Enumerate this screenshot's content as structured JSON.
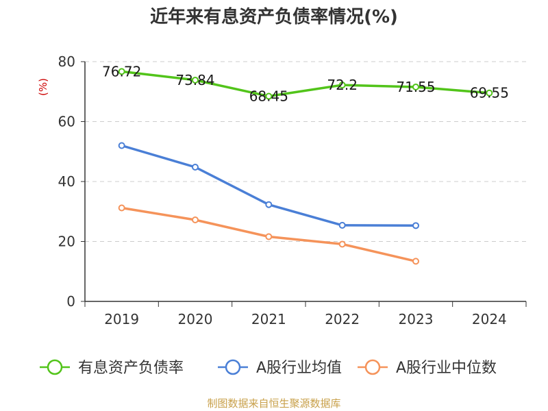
{
  "chart_data": {
    "type": "line",
    "title": "近年来有息资产负债率情况(%)",
    "ylabel": "(%)",
    "xlabel": "",
    "categories": [
      "2019",
      "2020",
      "2021",
      "2022",
      "2023",
      "2024"
    ],
    "ylim": [
      0,
      80
    ],
    "yticks": [
      0,
      20,
      40,
      60,
      80
    ],
    "grid": true,
    "legend_position": "bottom",
    "series": [
      {
        "name": "有息资产负债率",
        "color": "#52c41a",
        "values": [
          76.72,
          73.84,
          68.45,
          72.2,
          71.55,
          69.55
        ],
        "labels": [
          "76.72",
          "73.84",
          "68.45",
          "72.2",
          "71.55",
          "69.55"
        ],
        "show_labels": true
      },
      {
        "name": "A股行业均值",
        "color": "#4a7fd6",
        "values": [
          52.0,
          44.8,
          32.3,
          25.4,
          25.3,
          null
        ],
        "show_labels": false
      },
      {
        "name": "A股行业中位数",
        "color": "#f5935a",
        "values": [
          31.2,
          27.2,
          21.6,
          19.1,
          13.4,
          null
        ],
        "show_labels": false
      }
    ],
    "source": "制图数据来自恒生聚源数据库",
    "ylabel_color": "#cc0000",
    "source_color": "#c8a04a"
  }
}
